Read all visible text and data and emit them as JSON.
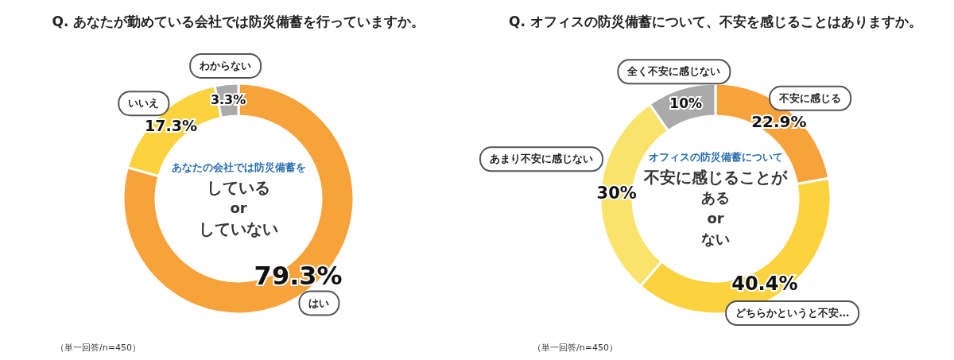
{
  "chart_data": [
    {
      "type": "donut",
      "title": "Q. あなたが勤めている会社では防災備蓄を行っていますか。",
      "categories": [
        "はい",
        "いいえ",
        "わからない"
      ],
      "values": [
        79.3,
        17.3,
        3.3
      ],
      "colors": [
        "#f7a23a",
        "#fbd33f",
        "#aaaaaa"
      ],
      "value_labels": [
        "79.3%",
        "17.3%",
        "3.3%"
      ],
      "legend": false,
      "annotations": [
        "（単一回答/n=450）",
        "あなたの会社では防災備蓄を",
        "している",
        "or",
        "していない"
      ]
    },
    {
      "type": "donut",
      "title": "Q. オフィスの防災備蓄について、不安を感じることはありますか。",
      "categories": [
        "不安に感じる",
        "どちらかというと不安…",
        "あまり不安に感じない",
        "全く不安に感じない"
      ],
      "values": [
        22.9,
        40.4,
        30,
        10
      ],
      "colors": [
        "#f7a23a",
        "#fbd33f",
        "#f9e36a",
        "#aaaaaa"
      ],
      "value_labels": [
        "22.9%",
        "40.4%",
        "30%",
        "10%"
      ],
      "legend": false,
      "annotations": [
        "（単一回答/n=450）",
        "オフィスの防災備蓄について",
        "不安に感じることが",
        "ある",
        "or",
        "ない"
      ]
    }
  ]
}
